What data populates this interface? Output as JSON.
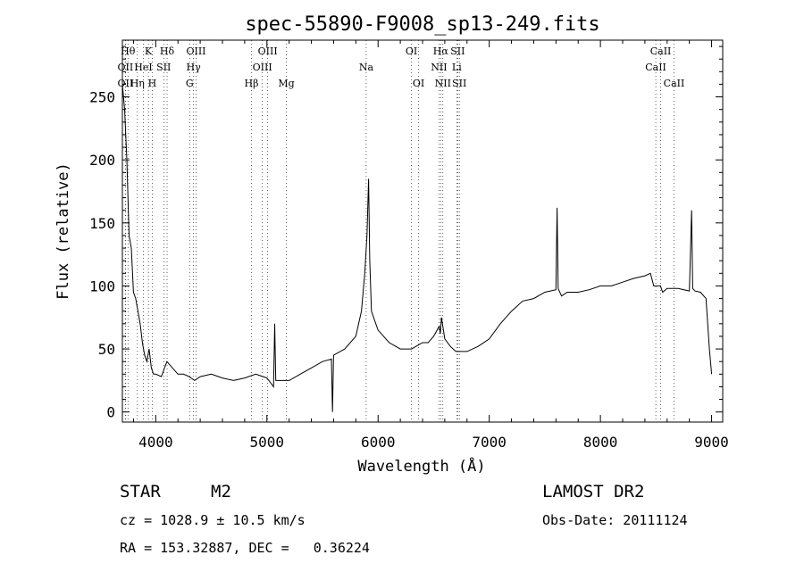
{
  "chart_data": {
    "type": "line",
    "title": "spec-55890-F9008_sp13-249.fits",
    "xlabel": "Wavelength (Å)",
    "ylabel": "Flux (relative)",
    "xlim": [
      3700,
      9100
    ],
    "ylim": [
      -8,
      295
    ],
    "xticks": [
      4000,
      5000,
      6000,
      7000,
      8000,
      9000
    ],
    "yticks": [
      0,
      50,
      100,
      150,
      200,
      250
    ],
    "grid": false,
    "series": [
      {
        "x": [
          3700,
          3720,
          3740,
          3760,
          3780,
          3800,
          3820,
          3840,
          3860,
          3880,
          3900,
          3920,
          3940,
          3960,
          3980,
          4000,
          4050,
          4100,
          4150,
          4200,
          4250,
          4300,
          4350,
          4400,
          4500,
          4600,
          4700,
          4800,
          4900,
          5000,
          5060,
          5070,
          5080,
          5100,
          5200,
          5300,
          5400,
          5500,
          5580,
          5590,
          5600,
          5700,
          5800,
          5850,
          5880,
          5900,
          5915,
          5925,
          5940,
          5960,
          6000,
          6100,
          6200,
          6300,
          6400,
          6450,
          6500,
          6550,
          6560,
          6570,
          6600,
          6650,
          6700,
          6800,
          6900,
          7000,
          7100,
          7200,
          7300,
          7400,
          7500,
          7550,
          7600,
          7610,
          7620,
          7650,
          7700,
          7800,
          7900,
          8000,
          8100,
          8200,
          8300,
          8400,
          8450,
          8480,
          8500,
          8540,
          8560,
          8600,
          8700,
          8800,
          8820,
          8830,
          8850,
          8900,
          8950,
          8980,
          9000
        ],
        "y": [
          260,
          240,
          200,
          140,
          130,
          95,
          90,
          80,
          70,
          55,
          45,
          40,
          50,
          35,
          30,
          30,
          28,
          40,
          35,
          30,
          30,
          28,
          25,
          28,
          30,
          27,
          25,
          27,
          30,
          27,
          20,
          70,
          25,
          25,
          25,
          30,
          35,
          40,
          42,
          0,
          45,
          50,
          60,
          80,
          110,
          140,
          185,
          120,
          80,
          75,
          65,
          55,
          50,
          50,
          55,
          55,
          60,
          68,
          62,
          75,
          58,
          52,
          48,
          48,
          52,
          58,
          70,
          80,
          88,
          90,
          95,
          96,
          97,
          162,
          98,
          92,
          95,
          95,
          97,
          100,
          100,
          103,
          106,
          108,
          110,
          100,
          100,
          100,
          95,
          98,
          98,
          96,
          160,
          98,
          96,
          95,
          90,
          50,
          30
        ],
        "style": "solid"
      }
    ],
    "lines": [
      {
        "label": "OII",
        "wavelength": 3727,
        "row": 2
      },
      {
        "label": "OII",
        "wavelength": 3727,
        "row": 3
      },
      {
        "label": "Hθ",
        "wavelength": 3750,
        "row": 1
      },
      {
        "label": "Hη",
        "wavelength": 3835,
        "row": 3
      },
      {
        "label": "K",
        "wavelength": 3934,
        "row": 1
      },
      {
        "label": "HeI",
        "wavelength": 3889,
        "row": 2
      },
      {
        "label": "SII",
        "wavelength": 4072,
        "row": 2
      },
      {
        "label": "H",
        "wavelength": 3969,
        "row": 3
      },
      {
        "label": "Hδ",
        "wavelength": 4102,
        "row": 1
      },
      {
        "label": "OIII",
        "wavelength": 4363,
        "row": 1
      },
      {
        "label": "Hγ",
        "wavelength": 4340,
        "row": 2
      },
      {
        "label": "G",
        "wavelength": 4305,
        "row": 3
      },
      {
        "label": "OIII",
        "wavelength": 5007,
        "row": 1
      },
      {
        "label": "OIII",
        "wavelength": 4959,
        "row": 2
      },
      {
        "label": "Hβ",
        "wavelength": 4861,
        "row": 3
      },
      {
        "label": "Mg",
        "wavelength": 5175,
        "row": 3
      },
      {
        "label": "Na",
        "wavelength": 5893,
        "row": 2
      },
      {
        "label": "OI",
        "wavelength": 6300,
        "row": 1
      },
      {
        "label": "OI",
        "wavelength": 6364,
        "row": 3
      },
      {
        "label": "Hα",
        "wavelength": 6563,
        "row": 1
      },
      {
        "label": "SII",
        "wavelength": 6716,
        "row": 1
      },
      {
        "label": "NII",
        "wavelength": 6548,
        "row": 2
      },
      {
        "label": "Li",
        "wavelength": 6708,
        "row": 2
      },
      {
        "label": "NII",
        "wavelength": 6583,
        "row": 3
      },
      {
        "label": "SII",
        "wavelength": 6731,
        "row": 3
      },
      {
        "label": "CaII",
        "wavelength": 8542,
        "row": 1
      },
      {
        "label": "CaII",
        "wavelength": 8498,
        "row": 2
      },
      {
        "label": "CaII",
        "wavelength": 8662,
        "row": 3
      }
    ]
  },
  "info": {
    "class": "STAR",
    "subclass": "M2",
    "survey": "LAMOST DR2",
    "redshift": "cz = 1028.9 ± 10.5 km/s",
    "obsdate": "Obs-Date: 20111124",
    "coords": "RA = 153.32887, DEC =   0.36224"
  }
}
